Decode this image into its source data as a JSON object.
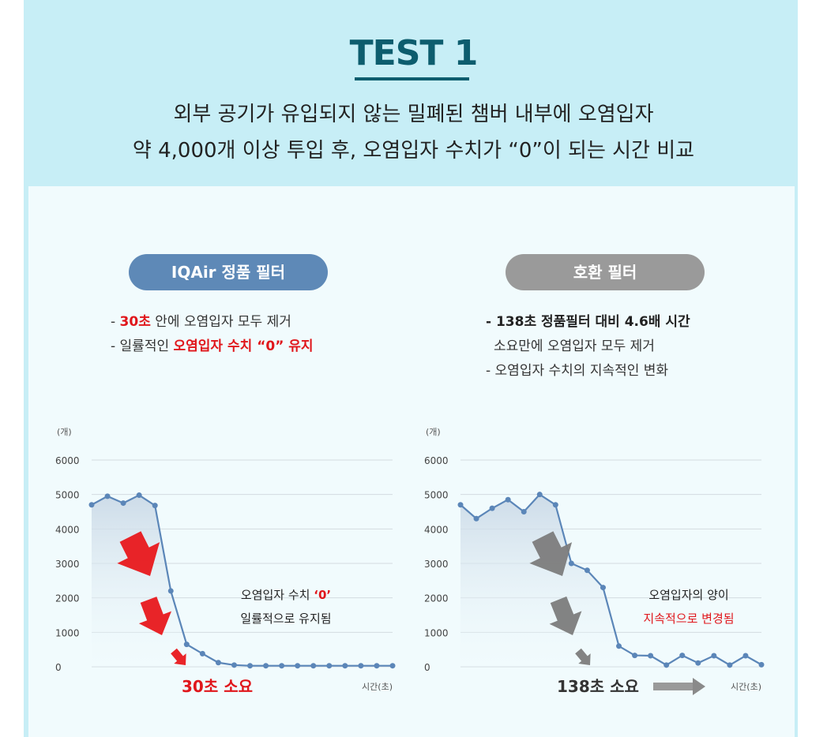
{
  "header": {
    "title": "TEST 1",
    "subtitle_line1": "외부 공기가 유입되지 않는 밀폐된 챔버 내부에 오염입자",
    "subtitle_line2": "약 4,000개 이상 투입 후, 오염입자 수치가 “0”이 되는 시간 비교"
  },
  "left": {
    "pill": "IQAir 정품 필터",
    "bullet1_dash": "- ",
    "bullet1_red": "30초",
    "bullet1_rest": " 안에 오염입자 모두 제거",
    "bullet2_dash": "- ",
    "bullet2_plain": "일률적인 ",
    "bullet2_red": "오염입자 수치 “0” 유지"
  },
  "right": {
    "pill": "호환 필터",
    "bullet1_bold": "- 138초 정품필터 대비 4.6배 시간",
    "bullet1_cont": "소요만에 오염입자 모두 제거",
    "bullet2": "- 오염입자 수치의 지속적인 변화"
  },
  "chart_data": [
    {
      "type": "line",
      "ylabel": "(개)",
      "xlabel": "시간(초)",
      "ylim": [
        0,
        6000
      ],
      "yticks": [
        "0",
        "1000",
        "2000",
        "3000",
        "4000",
        "5000",
        "6000"
      ],
      "x": [
        0,
        1,
        2,
        3,
        4,
        5,
        6,
        7,
        8,
        9,
        10,
        11,
        12,
        13,
        14,
        15,
        16,
        17,
        18,
        19
      ],
      "values": [
        4700,
        4950,
        4750,
        4980,
        4680,
        2200,
        650,
        380,
        120,
        50,
        30,
        30,
        30,
        30,
        30,
        30,
        30,
        30,
        30,
        30
      ],
      "annotation_line1": "오염입자 수치 ",
      "annotation_highlight": "‘0’",
      "annotation_line2": "일률적으로 유지됨",
      "result": "30초 소요",
      "line_color": "#5b86b8",
      "arrow_color": "#e8181c"
    },
    {
      "type": "line",
      "ylabel": "(개)",
      "xlabel": "시간(초)",
      "ylim": [
        0,
        6000
      ],
      "yticks": [
        "0",
        "1000",
        "2000",
        "3000",
        "4000",
        "5000",
        "6000"
      ],
      "x": [
        0,
        1,
        2,
        3,
        4,
        5,
        6,
        7,
        8,
        9,
        10,
        11,
        12,
        13,
        14,
        15,
        16,
        17,
        18,
        19
      ],
      "values": [
        4700,
        4300,
        4600,
        4850,
        4500,
        5000,
        4700,
        3000,
        2800,
        2300,
        600,
        330,
        320,
        50,
        330,
        110,
        320,
        50,
        320,
        60
      ],
      "annotation_line1": "오염입자의 양이",
      "annotation_line2": "지속적으로 변경됨",
      "result": "138초 소요",
      "line_color": "#5b86b8",
      "arrow_color": "#7c7c7c"
    }
  ]
}
